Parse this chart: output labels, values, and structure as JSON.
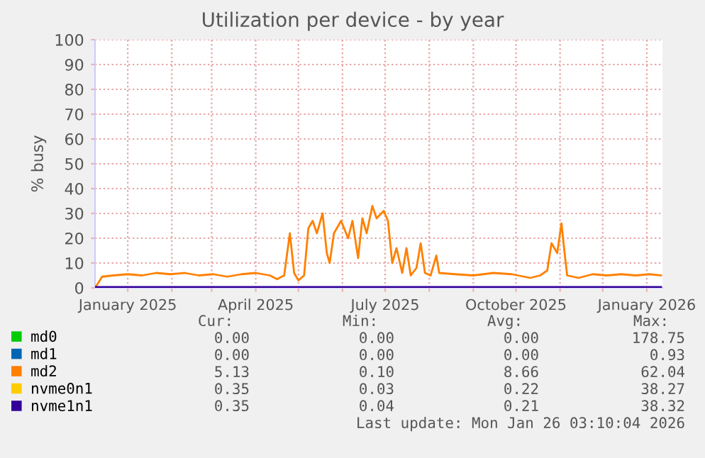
{
  "chart_data": {
    "type": "line",
    "title": "Utilization per device - by year",
    "ylabel": "% busy",
    "xlim": [
      "2024-12-09",
      "2026-01-12"
    ],
    "ylim": [
      0,
      100
    ],
    "yticks": [
      0,
      10,
      20,
      30,
      40,
      50,
      60,
      70,
      80,
      90,
      100
    ],
    "xticks": [
      {
        "value": "2025-01-01",
        "label": "January 2025"
      },
      {
        "value": "2025-02-01",
        "label": null
      },
      {
        "value": "2025-03-01",
        "label": null
      },
      {
        "value": "2025-04-01",
        "label": "April 2025"
      },
      {
        "value": "2025-05-01",
        "label": null
      },
      {
        "value": "2025-06-01",
        "label": null
      },
      {
        "value": "2025-07-01",
        "label": "July 2025"
      },
      {
        "value": "2025-08-01",
        "label": null
      },
      {
        "value": "2025-09-01",
        "label": null
      },
      {
        "value": "2025-10-01",
        "label": "October 2025"
      },
      {
        "value": "2025-11-01",
        "label": null
      },
      {
        "value": "2025-12-01",
        "label": null
      },
      {
        "value": "2026-01-01",
        "label": "January 2026"
      }
    ],
    "grid": true,
    "legend": "bottom left",
    "marker": "none",
    "line_style": "solid",
    "series": [
      {
        "name": "md0",
        "color": "#00cc00"
      },
      {
        "name": "md1",
        "color": "#0066b3"
      },
      {
        "name": "md2",
        "color": "#ff8000",
        "x": [
          "2024-12-09",
          "2024-12-14",
          "2024-12-22",
          "2025-01-01",
          "2025-01-11",
          "2025-01-21",
          "2025-01-31",
          "2025-02-10",
          "2025-02-20",
          "2025-03-02",
          "2025-03-12",
          "2025-03-22",
          "2025-04-01",
          "2025-04-11",
          "2025-04-16",
          "2025-04-21",
          "2025-04-25",
          "2025-04-28",
          "2025-05-01",
          "2025-05-05",
          "2025-05-08",
          "2025-05-11",
          "2025-05-14",
          "2025-05-18",
          "2025-05-21",
          "2025-05-23",
          "2025-05-26",
          "2025-05-31",
          "2025-06-05",
          "2025-06-08",
          "2025-06-12",
          "2025-06-15",
          "2025-06-18",
          "2025-06-22",
          "2025-06-25",
          "2025-06-30",
          "2025-07-03",
          "2025-07-06",
          "2025-07-09",
          "2025-07-13",
          "2025-07-16",
          "2025-07-19",
          "2025-07-23",
          "2025-07-26",
          "2025-07-29",
          "2025-08-02",
          "2025-08-06",
          "2025-08-08",
          "2025-08-19",
          "2025-09-01",
          "2025-09-15",
          "2025-09-28",
          "2025-10-11",
          "2025-10-18",
          "2025-10-23",
          "2025-10-26",
          "2025-10-30",
          "2025-11-02",
          "2025-11-04",
          "2025-11-06",
          "2025-11-14",
          "2025-11-24",
          "2025-12-04",
          "2025-12-14",
          "2025-12-24",
          "2026-01-03",
          "2026-01-11"
        ],
        "values": [
          0,
          4.5,
          5,
          5.5,
          5,
          6,
          5.5,
          6,
          5,
          5.5,
          4.5,
          5.5,
          6,
          5,
          3.5,
          5,
          22,
          6,
          3,
          5,
          24,
          27,
          22,
          30,
          14,
          10,
          22,
          27,
          20,
          27,
          12,
          28,
          22,
          33,
          28,
          31,
          27,
          10,
          16,
          6,
          16,
          5,
          8,
          18,
          6,
          5,
          13,
          6,
          5.5,
          5,
          6,
          5.5,
          4,
          5,
          7,
          18,
          14,
          26,
          15,
          5,
          4,
          5.5,
          5,
          5.5,
          5,
          5.5,
          5
        ]
      },
      {
        "name": "nvme0n1",
        "color": "#ffcc00"
      },
      {
        "name": "nvme1n1",
        "color": "#330099",
        "x": [
          "2024-12-09",
          "2026-01-11"
        ],
        "values": [
          0.3,
          0.3
        ]
      }
    ],
    "annotations": [
      "Cur:",
      "Min:",
      "Avg:",
      "Max:",
      "0.00",
      "0.00",
      "0.00",
      "178.75",
      "0.00",
      "0.00",
      "0.00",
      "0.93",
      "5.13",
      "0.10",
      "8.66",
      "62.04",
      "0.35",
      "0.03",
      "0.22",
      "38.27",
      "0.35",
      "0.04",
      "0.21",
      "38.32",
      "Last update: Mon Jan 26 03:10:04 2026"
    ]
  }
}
